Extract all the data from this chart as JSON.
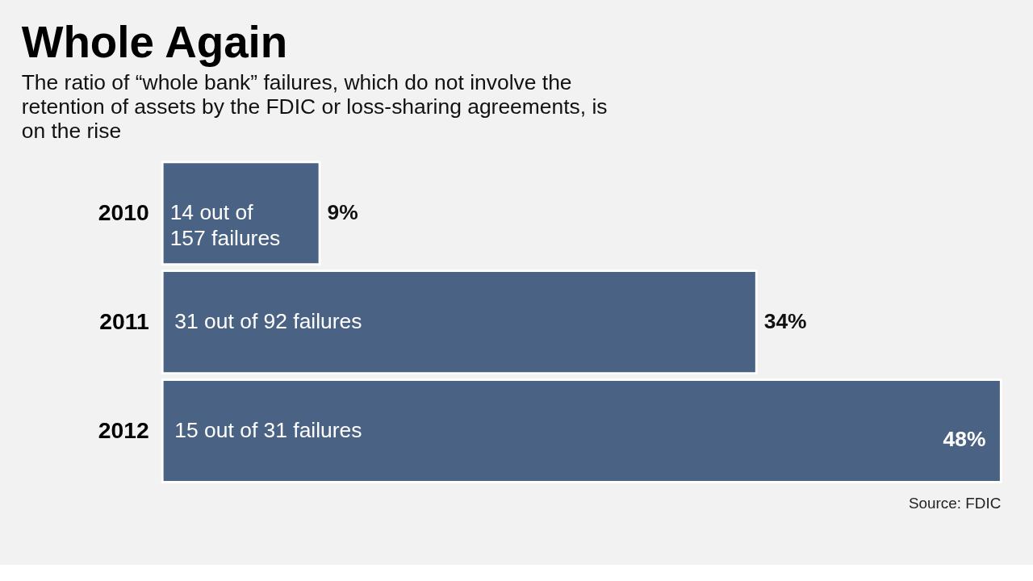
{
  "chart_data": {
    "type": "bar",
    "orientation": "horizontal",
    "title": "Whole Again",
    "subtitle": "The ratio of “whole bank” failures, which do not involve the retention of assets by the FDIC or loss-sharing agreements, is on the rise",
    "categories": [
      "2010",
      "2011",
      "2012"
    ],
    "values": [
      9,
      34,
      48
    ],
    "color": "#4a6283",
    "value_labels": [
      "9%",
      "34%",
      "48%"
    ],
    "annotations": [
      "14 out of\n157 failures",
      "31 out of 92 failures",
      "15 out of 31 failures",
      "Source: FDIC"
    ]
  }
}
